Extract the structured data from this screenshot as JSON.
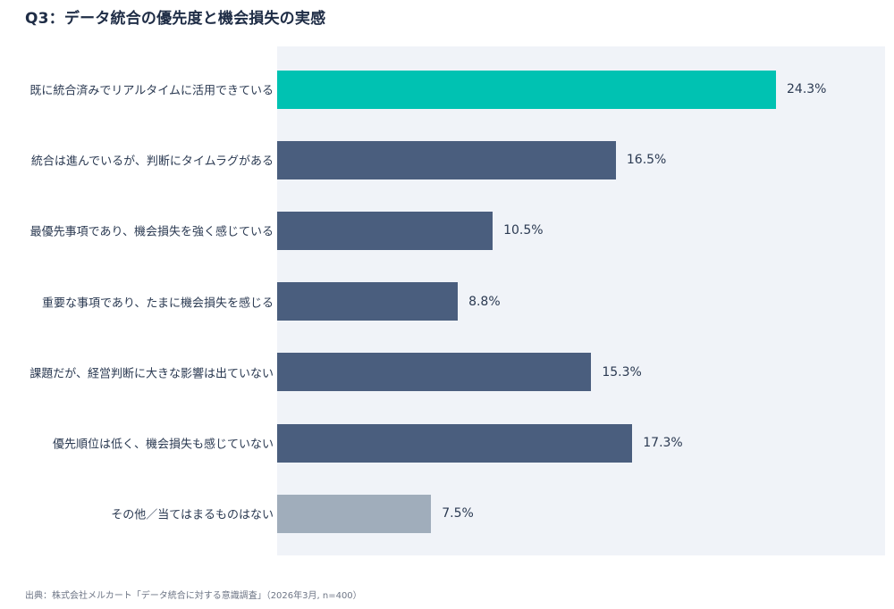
{
  "title": "Q3：データ統合の優先度と機会損失の実感",
  "source": "出典：株式会社メルカート「データ統合に対する意識調査」（2026年3月, n=400）",
  "chart_data": {
    "type": "bar",
    "orientation": "horizontal",
    "categories": [
      "既に統合済みでリアルタイムに活用できている",
      "統合は進んでいるが、判断にタイムラグがある",
      "最優先事項であり、機会損失を強く感じている",
      "重要な事項であり、たまに機会損失を感じる",
      "課題だが、経営判断に大きな影響は出ていない",
      "優先順位は低く、機会損失も感じていない",
      "その他／当てはまるものはない"
    ],
    "values": [
      24.3,
      16.5,
      10.5,
      8.8,
      15.3,
      17.3,
      7.5
    ],
    "value_labels": [
      "24.3%",
      "16.5%",
      "10.5%",
      "8.8%",
      "15.3%",
      "17.3%",
      "7.5%"
    ],
    "xlim": [
      0,
      28
    ],
    "colors": [
      "#00c2b2",
      "#4a5e7e",
      "#4a5e7e",
      "#4a5e7e",
      "#4a5e7e",
      "#4a5e7e",
      "#a0adbb"
    ],
    "grid": false,
    "legend": "none"
  }
}
